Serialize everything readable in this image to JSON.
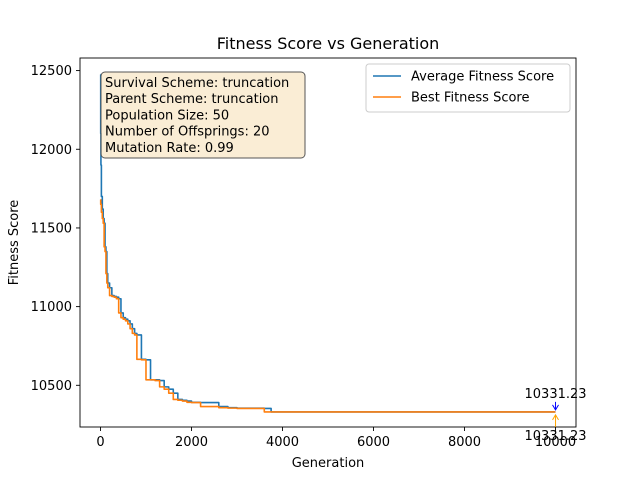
{
  "chart_data": {
    "type": "line",
    "title": "Fitness Score vs Generation",
    "xlabel": "Generation",
    "ylabel": "Fitness Score",
    "xlim": [
      -450,
      10450
    ],
    "ylim": [
      10235,
      12580
    ],
    "x_ticks": [
      0,
      2000,
      4000,
      6000,
      8000,
      10000
    ],
    "x_tick_labels": [
      "0",
      "2000",
      "4000",
      "6000",
      "8000",
      "10000"
    ],
    "y_ticks": [
      10500,
      11000,
      11500,
      12000,
      12500
    ],
    "y_tick_labels": [
      "10500",
      "11000",
      "11500",
      "12000",
      "12500"
    ],
    "grid": false,
    "legend_position": "top-right",
    "series": [
      {
        "name": "Average Fitness Score",
        "color": "#1f77b4",
        "x": [
          0,
          5,
          10,
          20,
          40,
          60,
          80,
          100,
          120,
          140,
          160,
          200,
          250,
          300,
          350,
          400,
          450,
          500,
          550,
          600,
          650,
          700,
          750,
          800,
          900,
          1000,
          1100,
          1200,
          1300,
          1400,
          1500,
          1600,
          1700,
          1800,
          1900,
          2000,
          2200,
          2600,
          2800,
          3000,
          3600,
          3750,
          10000
        ],
        "values": [
          12475,
          12100,
          11900,
          11700,
          11620,
          11560,
          11530,
          11380,
          11350,
          11210,
          11150,
          11120,
          11070,
          11065,
          11060,
          11050,
          10960,
          10930,
          10920,
          10910,
          10890,
          10860,
          10830,
          10820,
          10665,
          10662,
          10535,
          10535,
          10530,
          10490,
          10475,
          10450,
          10410,
          10405,
          10400,
          10392,
          10390,
          10365,
          10358,
          10355,
          10353,
          10331,
          10331
        ]
      },
      {
        "name": "Best Fitness Score",
        "color": "#ff7f0e",
        "x": [
          0,
          5,
          20,
          40,
          60,
          80,
          100,
          120,
          140,
          160,
          200,
          250,
          300,
          350,
          400,
          450,
          500,
          550,
          600,
          650,
          700,
          750,
          800,
          900,
          1000,
          1100,
          1200,
          1300,
          1400,
          1500,
          1600,
          1700,
          1800,
          1900,
          2000,
          2200,
          2600,
          2800,
          3000,
          3600,
          3750,
          10000
        ],
        "values": [
          11680,
          11650,
          11600,
          11560,
          11530,
          11380,
          11350,
          11210,
          11150,
          11120,
          11070,
          11065,
          11060,
          11050,
          10960,
          10930,
          10920,
          10910,
          10890,
          10860,
          10830,
          10820,
          10665,
          10662,
          10535,
          10535,
          10530,
          10490,
          10475,
          10450,
          10410,
          10405,
          10400,
          10392,
          10390,
          10365,
          10358,
          10355,
          10353,
          10331,
          10331,
          10331
        ]
      }
    ],
    "info_box": [
      "Survival Scheme: truncation",
      "Parent Scheme: truncation",
      "Population Size: 50",
      "Number of Offsprings: 20",
      "Mutation Rate: 0.99"
    ],
    "annotations": [
      {
        "text": "10331.23",
        "x": 10000,
        "y": 10331.23,
        "color": "#0000ff",
        "placement": "above"
      },
      {
        "text": "10331.23",
        "x": 10000,
        "y": 10331.23,
        "color": "#ffa500",
        "placement": "below"
      }
    ]
  }
}
